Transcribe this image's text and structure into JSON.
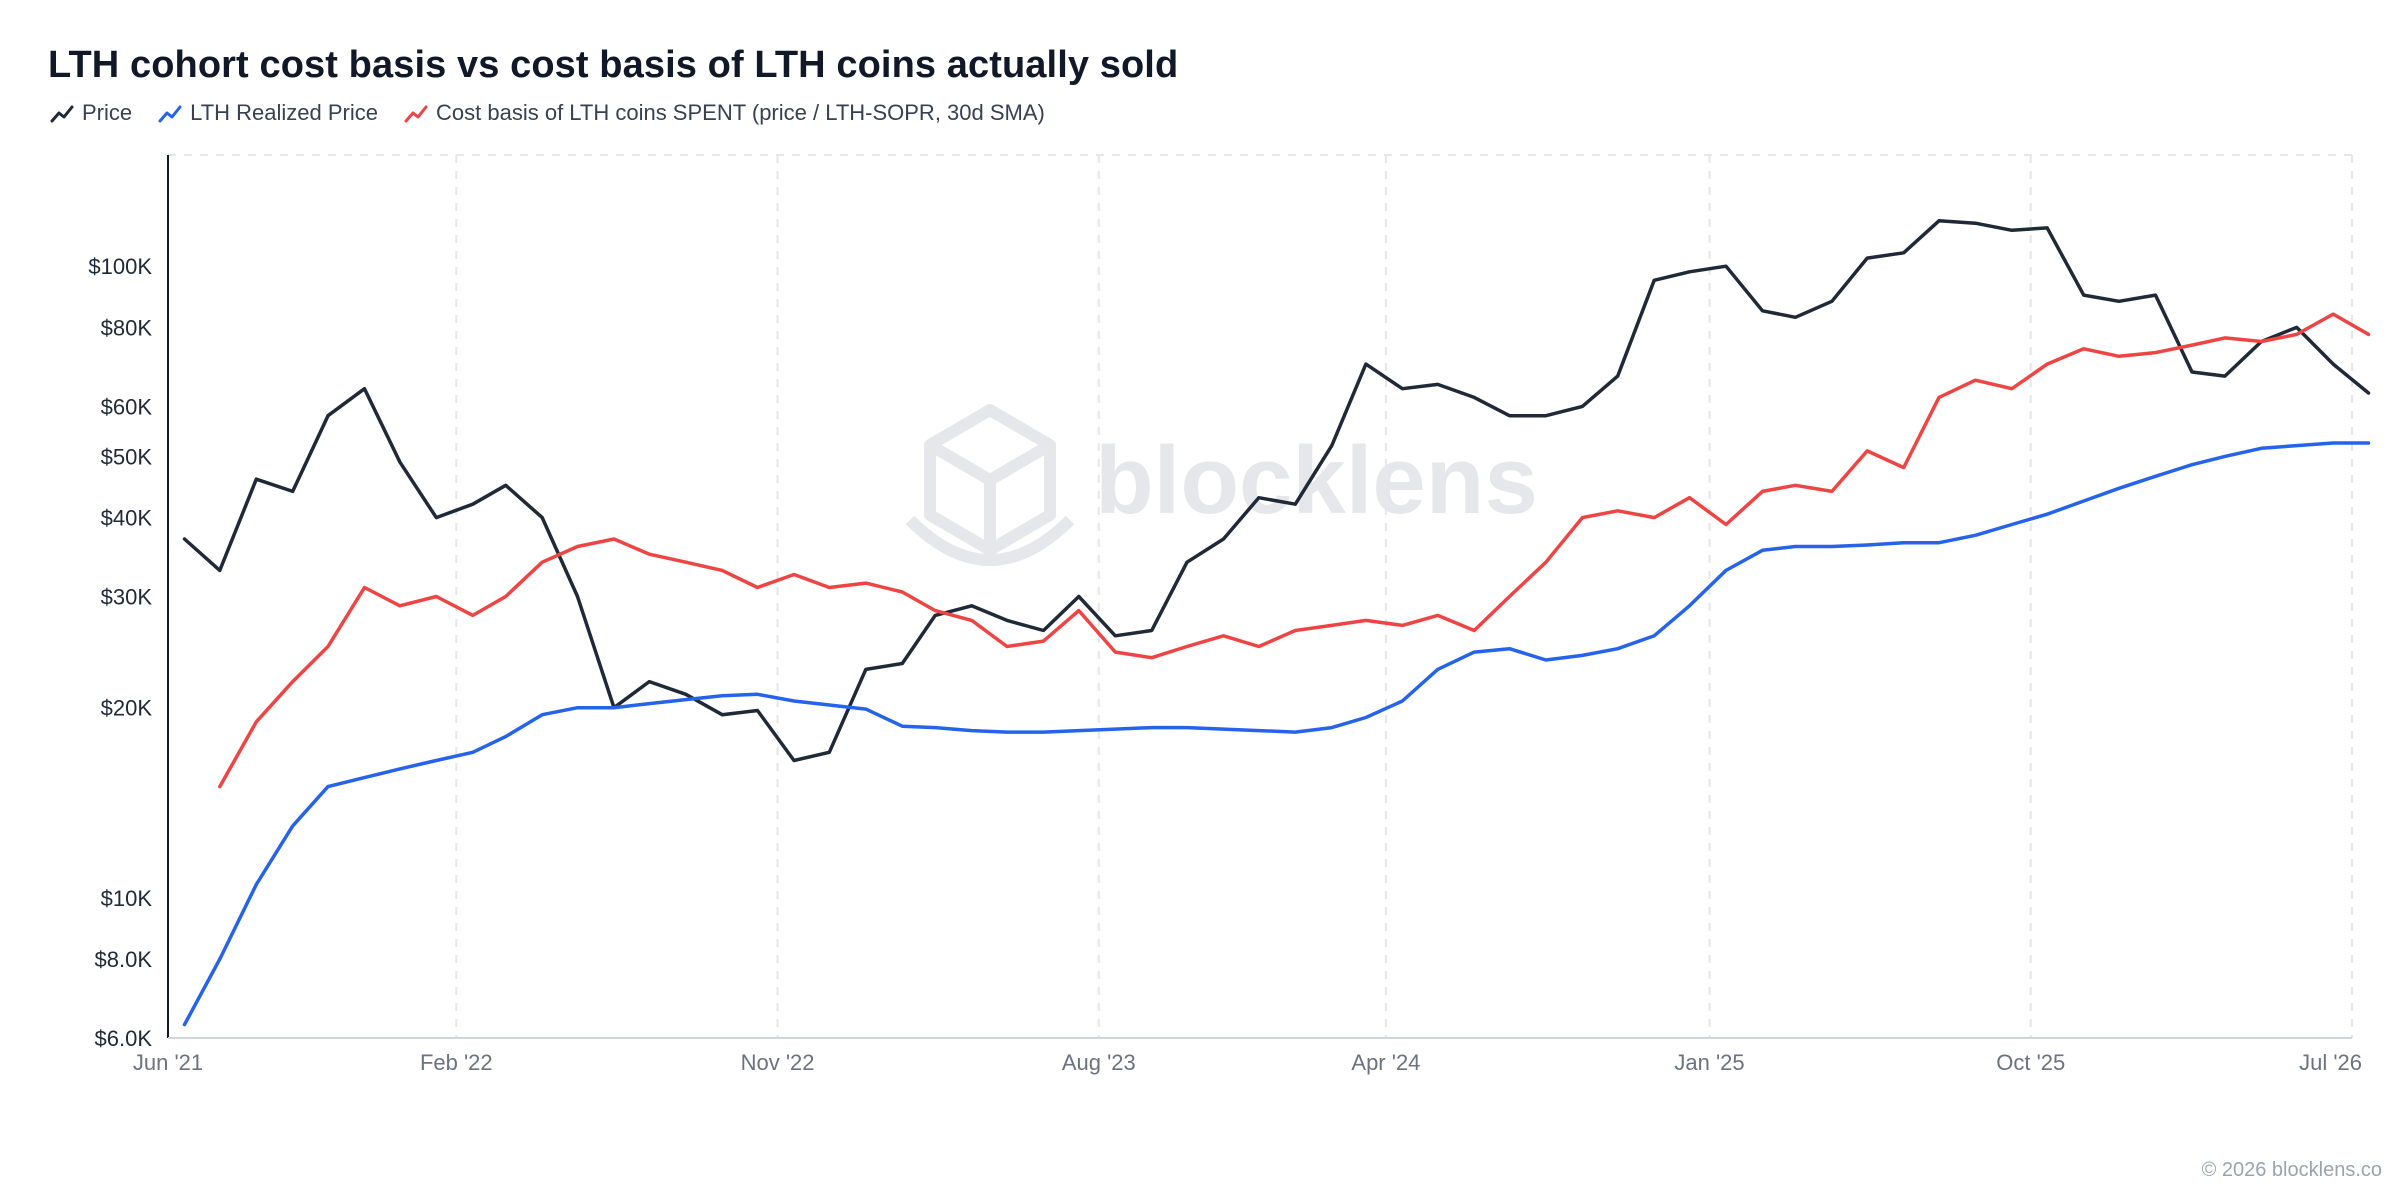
{
  "header": {
    "title": "LTH cohort cost basis vs cost basis of LTH coins actually sold"
  },
  "legend": [
    {
      "label": "Price",
      "color": "#1f2937"
    },
    {
      "label": "LTH Realized Price",
      "color": "#2563eb"
    },
    {
      "label": "Cost basis of LTH coins SPENT (price / LTH-SOPR, 30d SMA)",
      "color": "#ef4444"
    }
  ],
  "watermark": {
    "text": "blocklens"
  },
  "footer": {
    "copyright": "© 2026 blocklens.co"
  },
  "chart_data": {
    "type": "line",
    "title": "LTH cohort cost basis vs cost basis of LTH coins actually sold",
    "y_scale": "log",
    "ylim": [
      6000,
      150000
    ],
    "xlim": [
      "Jun '21",
      "Jul '26"
    ],
    "grid": "vertical dashed",
    "legend_placement": "top-left",
    "y_ticks": [
      {
        "v": 6000,
        "label": "$6.0K"
      },
      {
        "v": 8000,
        "label": "$8.0K"
      },
      {
        "v": 10000,
        "label": "$10K"
      },
      {
        "v": 20000,
        "label": "$20K"
      },
      {
        "v": 30000,
        "label": "$30K"
      },
      {
        "v": 40000,
        "label": "$40K"
      },
      {
        "v": 50000,
        "label": "$50K"
      },
      {
        "v": 60000,
        "label": "$60K"
      },
      {
        "v": 80000,
        "label": "$80K"
      },
      {
        "v": 100000,
        "label": "$100K"
      }
    ],
    "x_ticks": [
      "Jun '21",
      "Feb '22",
      "Nov '22",
      "Aug '23",
      "Apr '24",
      "Jan '25",
      "Oct '25",
      "Jul '26"
    ],
    "series": [
      {
        "name": "Price",
        "color": "#1f2937",
        "x": [
          "2021-06",
          "2021-07",
          "2021-08",
          "2021-09",
          "2021-10",
          "2021-11",
          "2021-12",
          "2022-01",
          "2022-02",
          "2022-03",
          "2022-04",
          "2022-05",
          "2022-06",
          "2022-07",
          "2022-08",
          "2022-09",
          "2022-10",
          "2022-11",
          "2022-12",
          "2023-01",
          "2023-02",
          "2023-03",
          "2023-04",
          "2023-05",
          "2023-06",
          "2023-07",
          "2023-08",
          "2023-09",
          "2023-10",
          "2023-11",
          "2023-12",
          "2024-01",
          "2024-02",
          "2024-03",
          "2024-04",
          "2024-05",
          "2024-06",
          "2024-07",
          "2024-08",
          "2024-09",
          "2024-10",
          "2024-11",
          "2024-12",
          "2025-01",
          "2025-02",
          "2025-03",
          "2025-04",
          "2025-05",
          "2025-06",
          "2025-07",
          "2025-08",
          "2025-09",
          "2025-10",
          "2025-11",
          "2025-12",
          "2026-01",
          "2026-02",
          "2026-03",
          "2026-04",
          "2026-05",
          "2026-06",
          "2026-07"
        ],
        "values": [
          37000,
          33000,
          46000,
          44000,
          58000,
          64000,
          49000,
          40000,
          42000,
          45000,
          40000,
          30000,
          20000,
          22000,
          21000,
          19500,
          19800,
          16500,
          17000,
          23000,
          23500,
          28000,
          29000,
          27500,
          26500,
          30000,
          26000,
          26500,
          34000,
          37000,
          43000,
          42000,
          52000,
          70000,
          64000,
          65000,
          62000,
          58000,
          58000,
          60000,
          67000,
          95000,
          98000,
          100000,
          85000,
          83000,
          88000,
          103000,
          105000,
          118000,
          117000,
          114000,
          115000,
          90000,
          88000,
          90000,
          68000,
          67000,
          76000,
          80000,
          70000,
          63000
        ]
      },
      {
        "name": "LTH Realized Price",
        "color": "#2563eb",
        "x": [
          "2021-06",
          "2021-07",
          "2021-08",
          "2021-09",
          "2021-10",
          "2021-11",
          "2021-12",
          "2022-01",
          "2022-02",
          "2022-03",
          "2022-04",
          "2022-05",
          "2022-06",
          "2022-07",
          "2022-08",
          "2022-09",
          "2022-10",
          "2022-11",
          "2022-12",
          "2023-01",
          "2023-02",
          "2023-03",
          "2023-04",
          "2023-05",
          "2023-06",
          "2023-07",
          "2023-08",
          "2023-09",
          "2023-10",
          "2023-11",
          "2023-12",
          "2024-01",
          "2024-02",
          "2024-03",
          "2024-04",
          "2024-05",
          "2024-06",
          "2024-07",
          "2024-08",
          "2024-09",
          "2024-10",
          "2024-11",
          "2024-12",
          "2025-01",
          "2025-02",
          "2025-03",
          "2025-04",
          "2025-05",
          "2025-06",
          "2025-07",
          "2025-08",
          "2025-09",
          "2025-10",
          "2025-11",
          "2025-12",
          "2026-01",
          "2026-02",
          "2026-03",
          "2026-04",
          "2026-05",
          "2026-06",
          "2026-07"
        ],
        "values": [
          6300,
          8000,
          10500,
          13000,
          15000,
          15500,
          16000,
          16500,
          17000,
          18000,
          19500,
          20000,
          20000,
          20300,
          20600,
          20900,
          21000,
          20500,
          20200,
          19900,
          18700,
          18600,
          18400,
          18300,
          18300,
          18400,
          18500,
          18600,
          18600,
          18500,
          18400,
          18300,
          18600,
          19300,
          20500,
          23000,
          24500,
          24800,
          23800,
          24200,
          24800,
          26000,
          29000,
          33000,
          35500,
          36000,
          36000,
          36200,
          36500,
          36500,
          37500,
          39000,
          40500,
          42500,
          44500,
          46500,
          48500,
          50000,
          51500,
          52000,
          52500,
          52500
        ]
      },
      {
        "name": "Cost basis of LTH coins SPENT (price / LTH-SOPR, 30d SMA)",
        "color": "#ef4444",
        "x": [
          "2021-07",
          "2021-08",
          "2021-09",
          "2021-10",
          "2021-11",
          "2021-12",
          "2022-01",
          "2022-02",
          "2022-03",
          "2022-04",
          "2022-05",
          "2022-06",
          "2022-07",
          "2022-08",
          "2022-09",
          "2022-10",
          "2022-11",
          "2022-12",
          "2023-01",
          "2023-02",
          "2023-03",
          "2023-04",
          "2023-05",
          "2023-06",
          "2023-07",
          "2023-08",
          "2023-09",
          "2023-10",
          "2023-11",
          "2023-12",
          "2024-01",
          "2024-02",
          "2024-03",
          "2024-04",
          "2024-05",
          "2024-06",
          "2024-07",
          "2024-08",
          "2024-09",
          "2024-10",
          "2024-11",
          "2024-12",
          "2025-01",
          "2025-02",
          "2025-03",
          "2025-04",
          "2025-05",
          "2025-06",
          "2025-07",
          "2025-08",
          "2025-09",
          "2025-10",
          "2025-11",
          "2025-12",
          "2026-01",
          "2026-02",
          "2026-03",
          "2026-04",
          "2026-05",
          "2026-06",
          "2026-07"
        ],
        "values": [
          15000,
          19000,
          22000,
          25000,
          31000,
          29000,
          30000,
          28000,
          30000,
          34000,
          36000,
          37000,
          35000,
          34000,
          33000,
          31000,
          32500,
          31000,
          31500,
          30500,
          28500,
          27500,
          25000,
          25500,
          28500,
          24500,
          24000,
          25000,
          26000,
          25000,
          26500,
          27000,
          27500,
          27000,
          28000,
          26500,
          30000,
          34000,
          40000,
          41000,
          40000,
          43000,
          39000,
          44000,
          45000,
          44000,
          51000,
          48000,
          62000,
          66000,
          64000,
          70000,
          74000,
          72000,
          73000,
          75000,
          77000,
          76000,
          78000,
          84000,
          78000
        ]
      }
    ]
  }
}
